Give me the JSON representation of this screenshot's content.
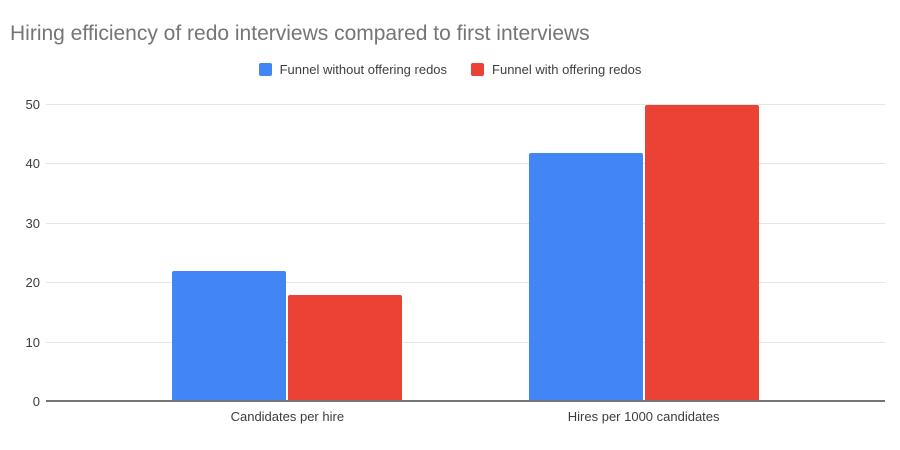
{
  "chart_data": {
    "type": "bar",
    "title": "Hiring efficiency of redo interviews compared to first interviews",
    "categories": [
      "Candidates per hire",
      "Hires per 1000 candidates"
    ],
    "series": [
      {
        "name": "Funnel without offering redos",
        "color": "#4285F4",
        "values": [
          22,
          42
        ]
      },
      {
        "name": "Funnel with offering redos",
        "color": "#EA4335",
        "values": [
          18,
          50
        ]
      }
    ],
    "xlabel": "",
    "ylabel": "",
    "ylim": [
      0,
      50
    ],
    "y_ticks": [
      0,
      10,
      20,
      30,
      40,
      50
    ],
    "grid": true,
    "legend_position": "top"
  },
  "styles": {
    "title_color": "#757575",
    "axis_label_color": "#3c3c3c",
    "legend_text_color": "#3c4043",
    "gridline_color": "#e6e6e6",
    "baseline_color": "#757575",
    "background": "#ffffff"
  }
}
